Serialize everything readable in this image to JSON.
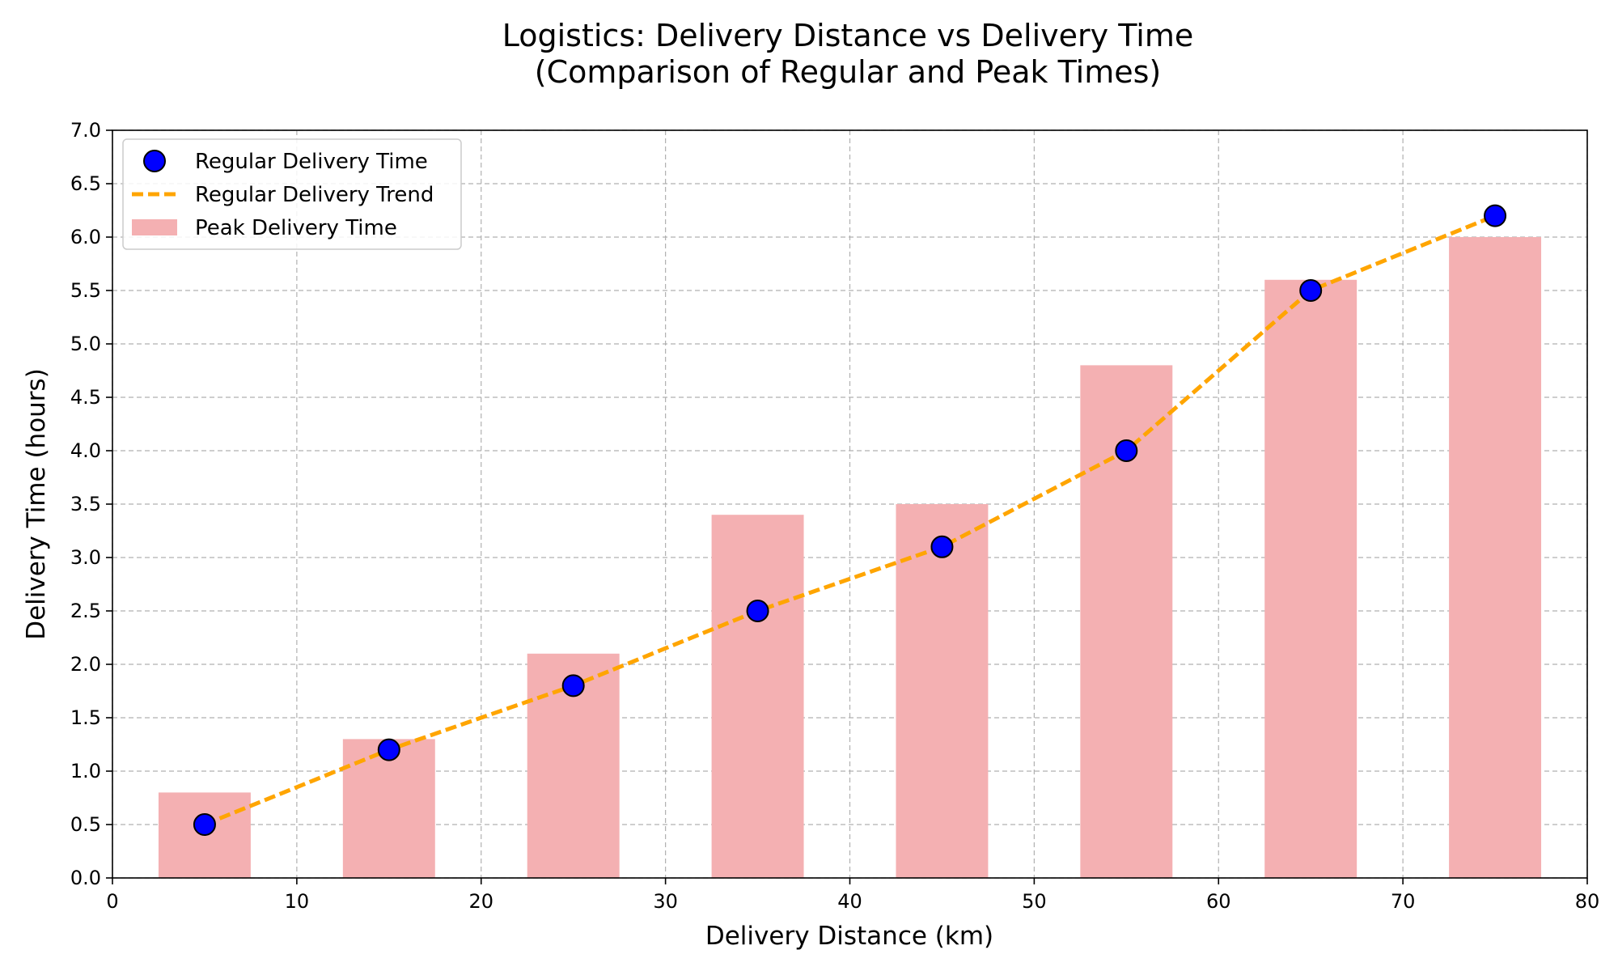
{
  "chart_data": {
    "type": "bar",
    "title": "Logistics: Delivery Distance vs Delivery Time",
    "subtitle": "(Comparison of Regular and Peak Times)",
    "xlabel": "Delivery Distance (km)",
    "ylabel": "Delivery Time (hours)",
    "xlim": [
      0,
      80
    ],
    "ylim": [
      0,
      7
    ],
    "x_ticks": [
      "0",
      "10",
      "20",
      "30",
      "40",
      "50",
      "60",
      "70",
      "80"
    ],
    "y_ticks": [
      "0.0",
      "0.5",
      "1.0",
      "1.5",
      "2.0",
      "2.5",
      "3.0",
      "3.5",
      "4.0",
      "4.5",
      "5.0",
      "5.5",
      "6.0",
      "6.5",
      "7.0"
    ],
    "grid": true,
    "legend_position": "top-left",
    "x": [
      5,
      15,
      25,
      35,
      45,
      55,
      65,
      75
    ],
    "bar_width": 5,
    "series": [
      {
        "name": "Regular Delivery Time",
        "kind": "scatter",
        "color": "#0000ff",
        "values": [
          0.5,
          1.2,
          1.8,
          2.5,
          3.1,
          4.0,
          5.5,
          6.2
        ]
      },
      {
        "name": "Regular Delivery Trend",
        "kind": "line",
        "style": "dashed",
        "color": "#ffa500",
        "values": [
          0.5,
          1.2,
          1.8,
          2.5,
          3.1,
          4.0,
          5.5,
          6.2
        ]
      },
      {
        "name": "Peak Delivery Time",
        "kind": "bar",
        "color": "#f4b0b2",
        "values": [
          0.8,
          1.3,
          2.1,
          3.4,
          3.5,
          4.8,
          5.6,
          6.0
        ]
      }
    ]
  }
}
